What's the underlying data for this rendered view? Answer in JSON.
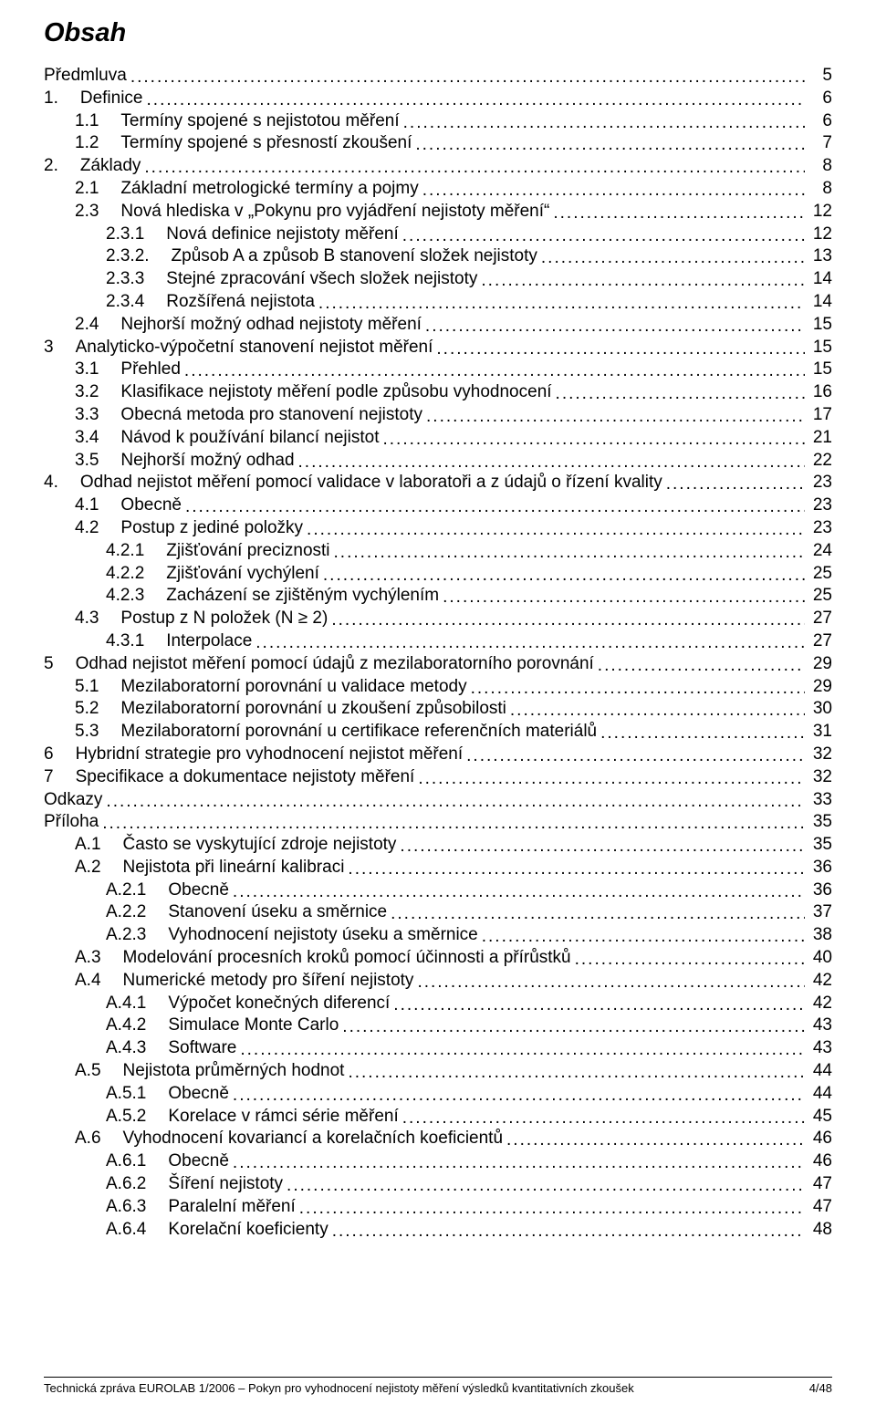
{
  "title": "Obsah",
  "footer": {
    "left": "Technická zpráva EUROLAB 1/2006 – Pokyn pro vyhodnocení nejistoty měření výsledků kvantitativních zkoušek",
    "right": "4/48"
  },
  "toc": [
    {
      "level": 0,
      "num": "",
      "text": "Předmluva",
      "page": "5"
    },
    {
      "level": 0,
      "num": "1.",
      "text": "Definice",
      "page": "6"
    },
    {
      "level": 1,
      "num": "1.1",
      "text": "Termíny spojené s nejistotou měření",
      "page": "6"
    },
    {
      "level": 1,
      "num": "1.2",
      "text": "Termíny spojené s přesností zkoušení",
      "page": "7"
    },
    {
      "level": 0,
      "num": "2.",
      "text": "Základy",
      "page": "8"
    },
    {
      "level": 1,
      "num": "2.1",
      "text": "Základní metrologické termíny a pojmy",
      "page": "8"
    },
    {
      "level": 1,
      "num": "2.3",
      "text": "Nová hlediska v „Pokynu pro vyjádření nejistoty měření“",
      "page": "12"
    },
    {
      "level": 2,
      "num": "2.3.1",
      "text": "Nová definice nejistoty měření",
      "page": "12"
    },
    {
      "level": 2,
      "num": "2.3.2.",
      "text": "Způsob A a způsob B stanovení složek nejistoty",
      "page": "13"
    },
    {
      "level": 2,
      "num": "2.3.3",
      "text": "Stejné zpracování všech složek nejistoty",
      "page": "14"
    },
    {
      "level": 2,
      "num": "2.3.4",
      "text": "Rozšířená nejistota",
      "page": "14"
    },
    {
      "level": 1,
      "num": "2.4",
      "text": "Nejhorší možný odhad nejistoty měření",
      "page": "15"
    },
    {
      "level": 0,
      "num": "3",
      "text": "Analyticko-výpočetní stanovení nejistot měření",
      "page": "15"
    },
    {
      "level": 1,
      "num": "3.1",
      "text": "Přehled",
      "page": "15"
    },
    {
      "level": 1,
      "num": "3.2",
      "text": "Klasifikace nejistoty měření podle způsobu vyhodnocení",
      "page": "16"
    },
    {
      "level": 1,
      "num": "3.3",
      "text": "Obecná metoda pro stanovení nejistoty",
      "page": "17"
    },
    {
      "level": 1,
      "num": "3.4",
      "text": "Návod k používání bilancí nejistot",
      "page": "21"
    },
    {
      "level": 1,
      "num": "3.5",
      "text": "Nejhorší možný odhad",
      "page": "22"
    },
    {
      "level": 0,
      "num": "4.",
      "text": "Odhad nejistot měření pomocí validace v laboratoři a z údajů o řízení kvality",
      "page": "23"
    },
    {
      "level": 1,
      "num": "4.1",
      "text": "Obecně",
      "page": "23"
    },
    {
      "level": 1,
      "num": "4.2",
      "text": "Postup z jediné položky",
      "page": "23"
    },
    {
      "level": 2,
      "num": "4.2.1",
      "text": "Zjišťování preciznosti",
      "page": "24"
    },
    {
      "level": 2,
      "num": "4.2.2",
      "text": "Zjišťování vychýlení",
      "page": "25"
    },
    {
      "level": 2,
      "num": "4.2.3",
      "text": "Zacházení se zjištěným vychýlením",
      "page": "25"
    },
    {
      "level": 1,
      "num": "4.3",
      "text": "Postup z N položek (N ≥ 2)",
      "page": "27"
    },
    {
      "level": 2,
      "num": "4.3.1",
      "text": "Interpolace",
      "page": "27"
    },
    {
      "level": 0,
      "num": "5",
      "text": "Odhad nejistot měření pomocí údajů z mezilaboratorního porovnání",
      "page": "29"
    },
    {
      "level": 1,
      "num": "5.1",
      "text": "Mezilaboratorní porovnání u validace metody",
      "page": "29"
    },
    {
      "level": 1,
      "num": "5.2",
      "text": "Mezilaboratorní porovnání u zkoušení způsobilosti",
      "page": "30"
    },
    {
      "level": 1,
      "num": "5.3",
      "text": "Mezilaboratorní porovnání u certifikace referenčních materiálů",
      "page": "31"
    },
    {
      "level": 0,
      "num": "6",
      "text": "Hybridní strategie pro vyhodnocení nejistot měření",
      "page": "32"
    },
    {
      "level": 0,
      "num": "7",
      "text": "Specifikace a dokumentace nejistoty měření",
      "page": "32"
    },
    {
      "level": 0,
      "num": "",
      "text": "Odkazy",
      "page": "33"
    },
    {
      "level": 0,
      "num": "",
      "text": "Příloha",
      "page": "35"
    },
    {
      "level": 1,
      "num": "A.1",
      "text": "Často se vyskytující zdroje nejistoty",
      "page": "35"
    },
    {
      "level": 1,
      "num": "A.2",
      "text": "Nejistota při lineární kalibraci",
      "page": "36"
    },
    {
      "level": 2,
      "num": "A.2.1",
      "text": "Obecně",
      "page": "36"
    },
    {
      "level": 2,
      "num": "A.2.2",
      "text": "Stanovení úseku a směrnice",
      "page": "37"
    },
    {
      "level": 2,
      "num": "A.2.3",
      "text": "Vyhodnocení nejistoty úseku a směrnice",
      "page": "38"
    },
    {
      "level": 1,
      "num": "A.3",
      "text": "Modelování procesních kroků pomocí účinnosti a přírůstků",
      "page": "40"
    },
    {
      "level": 1,
      "num": "A.4",
      "text": "Numerické metody pro šíření nejistoty",
      "page": "42"
    },
    {
      "level": 2,
      "num": "A.4.1",
      "text": "Výpočet konečných diferencí",
      "page": "42"
    },
    {
      "level": 2,
      "num": "A.4.2",
      "text": "Simulace Monte Carlo",
      "page": "43"
    },
    {
      "level": 2,
      "num": "A.4.3",
      "text": "Software",
      "page": "43"
    },
    {
      "level": 1,
      "num": "A.5",
      "text": "Nejistota průměrných hodnot",
      "page": "44"
    },
    {
      "level": 2,
      "num": "A.5.1",
      "text": "Obecně",
      "page": "44"
    },
    {
      "level": 2,
      "num": "A.5.2",
      "text": "Korelace v rámci série měření",
      "page": "45"
    },
    {
      "level": 1,
      "num": "A.6",
      "text": "Vyhodnocení kovariancí a korelačních koeficientů",
      "page": "46"
    },
    {
      "level": 2,
      "num": "A.6.1",
      "text": "Obecně",
      "page": "46"
    },
    {
      "level": 2,
      "num": "A.6.2",
      "text": "Šíření nejistoty",
      "page": "47"
    },
    {
      "level": 2,
      "num": "A.6.3",
      "text": "Paralelní měření",
      "page": "47"
    },
    {
      "level": 2,
      "num": "A.6.4",
      "text": "Korelační koeficienty",
      "page": "48"
    }
  ]
}
